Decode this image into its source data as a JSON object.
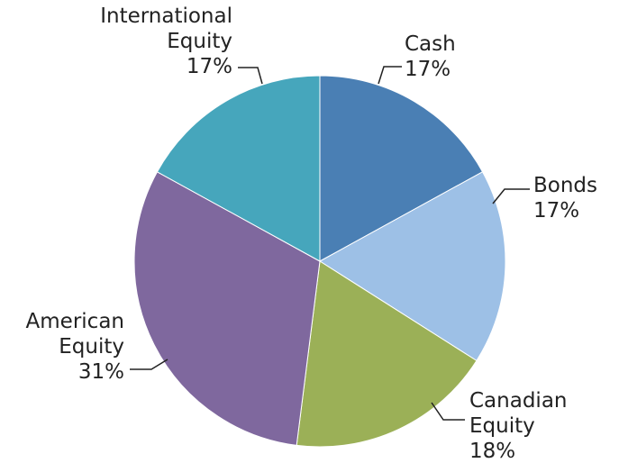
{
  "chart_data": {
    "type": "pie",
    "categories": [
      "Cash",
      "Bonds",
      "Canadian Equity",
      "American Equity",
      "International Equity"
    ],
    "values": [
      17,
      17,
      18,
      31,
      17
    ],
    "value_labels": [
      "17%",
      "17%",
      "18%",
      "31%",
      "17%"
    ],
    "colors": [
      "#4a7fb4",
      "#9dc0e6",
      "#9bb057",
      "#7f689e",
      "#46a6bc"
    ]
  }
}
